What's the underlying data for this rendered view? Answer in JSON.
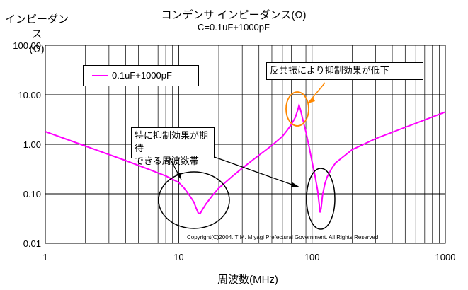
{
  "chart_data": {
    "type": "line",
    "title": "コンデンサ インピーダンス(Ω)",
    "subtitle": "C=0.1uF+1000pF",
    "ylabel": "インピーダンス\n(Ω)",
    "xlabel": "周波数(MHz)",
    "x_scale": "log",
    "y_scale": "log",
    "xlim": [
      1,
      1000
    ],
    "ylim": [
      0.01,
      100
    ],
    "x_ticks": [
      "1",
      "10",
      "100",
      "1000"
    ],
    "y_ticks": [
      "100.00",
      "10.00",
      "1.00",
      "0.10",
      "0.01"
    ],
    "grid": true,
    "legend": "top-left",
    "series": [
      {
        "name": "0.1uF+1000pF",
        "color": "#ff00ff",
        "x": [
          1,
          1.5,
          2,
          3,
          4,
          6,
          8,
          10,
          11,
          12,
          13,
          13.5,
          14,
          14.5,
          15,
          16,
          18,
          20,
          25,
          30,
          40,
          50,
          60,
          65,
          70,
          75,
          78,
          80,
          82,
          85,
          90,
          95,
          100,
          105,
          110,
          113,
          115,
          117,
          120,
          125,
          130,
          140,
          150,
          200,
          300,
          500,
          700,
          1000
        ],
        "y": [
          1.8,
          1.22,
          0.92,
          0.62,
          0.47,
          0.31,
          0.23,
          0.17,
          0.13,
          0.095,
          0.068,
          0.052,
          0.041,
          0.04,
          0.047,
          0.062,
          0.094,
          0.13,
          0.22,
          0.33,
          0.6,
          0.95,
          1.45,
          1.9,
          2.5,
          3.5,
          4.8,
          6.2,
          5,
          3.3,
          1.8,
          0.9,
          0.45,
          0.24,
          0.12,
          0.065,
          0.042,
          0.05,
          0.095,
          0.16,
          0.22,
          0.32,
          0.42,
          0.78,
          1.3,
          2.2,
          3.1,
          4.5
        ]
      }
    ],
    "annotations": [
      "反共振により抑制効果が低下",
      "特に抑制効果が期待\nできる周波数帯"
    ],
    "copyright": "Copyright(C)2004.ITIM. Miyagi Prefectural Government. All Rights Reserved"
  }
}
